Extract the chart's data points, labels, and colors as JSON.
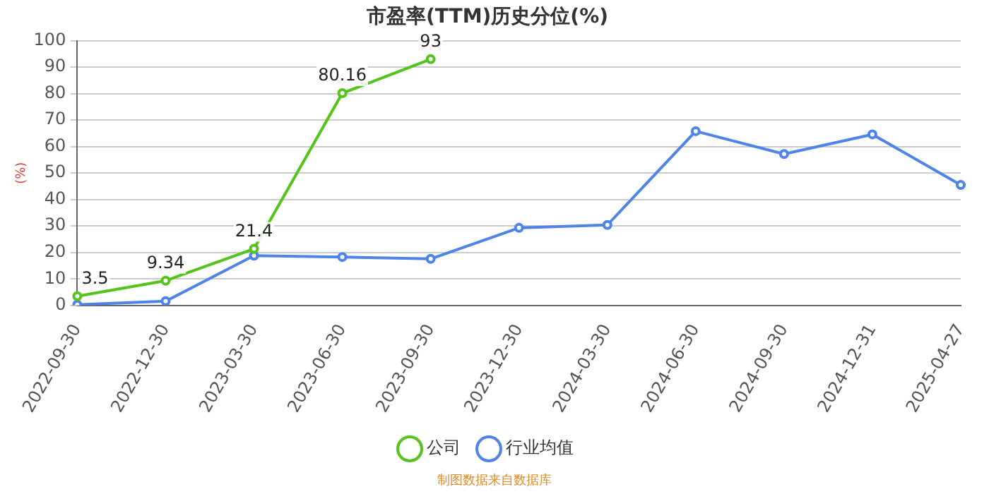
{
  "chart_data": {
    "type": "line",
    "title": "市盈率(TTM)历史分位(%)",
    "ylabel": "(%)",
    "categories": [
      "2022-09-30",
      "2022-12-30",
      "2023-03-30",
      "2023-06-30",
      "2023-09-30",
      "2023-12-30",
      "2024-03-30",
      "2024-06-30",
      "2024-09-30",
      "2024-12-31",
      "2025-04-27"
    ],
    "series": [
      {
        "name": "公司",
        "color": "#52c41a",
        "values": [
          3.5,
          9.34,
          21.4,
          80.16,
          93,
          null,
          null,
          null,
          null,
          null,
          null
        ],
        "value_labels": [
          "3.5",
          "9.34",
          "21.4",
          "80.16",
          "93",
          null,
          null,
          null,
          null,
          null,
          null
        ]
      },
      {
        "name": "行业均值",
        "color": "#4e83ea",
        "values": [
          0.3,
          1.6,
          18.8,
          18.3,
          17.6,
          29.3,
          30.4,
          65.8,
          57.2,
          64.6,
          45.5
        ]
      }
    ],
    "ylim": [
      0,
      100
    ],
    "yticks": [
      0,
      10,
      20,
      30,
      40,
      50,
      60,
      70,
      80,
      90,
      100
    ],
    "grid": "y",
    "legend": "bottom",
    "marker": "circle",
    "line_style": "solid",
    "annotations": [
      "制图数据来自数据库"
    ]
  }
}
